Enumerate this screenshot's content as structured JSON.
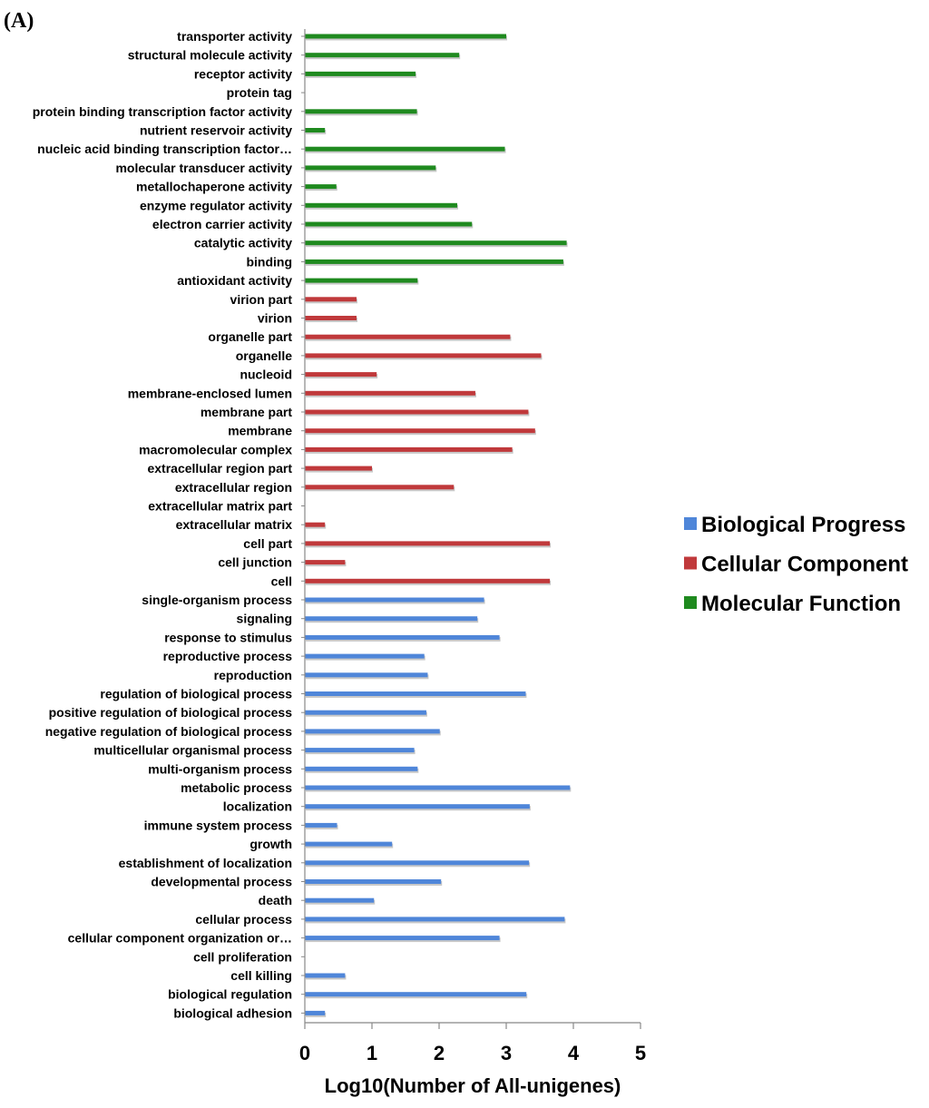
{
  "panel_label": "(A)",
  "chart_data": {
    "type": "bar",
    "orientation": "horizontal",
    "title": "",
    "xlabel": "Log10(Number of All-unigenes)",
    "ylabel": "",
    "xlim": [
      0,
      5
    ],
    "xticks": [
      0,
      1,
      2,
      3,
      4,
      5
    ],
    "grid": false,
    "legend_position": "right",
    "categories": [
      "transporter activity",
      "structural molecule activity",
      "receptor activity",
      "protein tag",
      "protein binding transcription factor activity",
      "nutrient reservoir activity",
      "nucleic acid binding transcription factor…",
      "molecular transducer activity",
      "metallochaperone activity",
      "enzyme regulator activity",
      "electron carrier activity",
      "catalytic activity",
      "binding",
      "antioxidant activity",
      "virion part",
      "virion",
      "organelle part",
      "organelle",
      "nucleoid",
      "membrane-enclosed lumen",
      "membrane part",
      "membrane",
      "macromolecular complex",
      "extracellular region part",
      "extracellular region",
      "extracellular matrix part",
      "extracellular matrix",
      "cell part",
      "cell junction",
      "cell",
      "single-organism process",
      "signaling",
      "response to stimulus",
      "reproductive process",
      "reproduction",
      "regulation of biological process",
      "positive regulation of biological process",
      "negative regulation of biological process",
      "multicellular organismal process",
      "multi-organism process",
      "metabolic process",
      "localization",
      "immune system process",
      "growth",
      "establishment of localization",
      "developmental process",
      "death",
      "cellular process",
      "cellular component organization or…",
      "cell proliferation",
      "cell killing",
      "biological regulation",
      "biological adhesion"
    ],
    "values": [
      3.0,
      2.3,
      1.65,
      0,
      1.67,
      0.3,
      2.98,
      1.95,
      0.47,
      2.27,
      2.49,
      3.9,
      3.85,
      1.68,
      0.77,
      0.77,
      3.06,
      3.52,
      1.07,
      2.54,
      3.33,
      3.43,
      3.09,
      1.0,
      2.22,
      0,
      0.3,
      3.65,
      0.6,
      3.65,
      2.67,
      2.57,
      2.9,
      1.78,
      1.83,
      3.29,
      1.81,
      2.01,
      1.63,
      1.68,
      3.95,
      3.35,
      0.48,
      1.3,
      3.34,
      2.03,
      1.03,
      3.87,
      2.9,
      0,
      0.6,
      3.3,
      0.3
    ],
    "groups": [
      "Molecular Function",
      "Molecular Function",
      "Molecular Function",
      "Molecular Function",
      "Molecular Function",
      "Molecular Function",
      "Molecular Function",
      "Molecular Function",
      "Molecular Function",
      "Molecular Function",
      "Molecular Function",
      "Molecular Function",
      "Molecular Function",
      "Molecular Function",
      "Cellular Component",
      "Cellular Component",
      "Cellular Component",
      "Cellular Component",
      "Cellular Component",
      "Cellular Component",
      "Cellular Component",
      "Cellular Component",
      "Cellular Component",
      "Cellular Component",
      "Cellular Component",
      "Cellular Component",
      "Cellular Component",
      "Cellular Component",
      "Cellular Component",
      "Cellular Component",
      "Biological Progress",
      "Biological Progress",
      "Biological Progress",
      "Biological Progress",
      "Biological Progress",
      "Biological Progress",
      "Biological Progress",
      "Biological Progress",
      "Biological Progress",
      "Biological Progress",
      "Biological Progress",
      "Biological Progress",
      "Biological Progress",
      "Biological Progress",
      "Biological Progress",
      "Biological Progress",
      "Biological Progress",
      "Biological Progress",
      "Biological Progress",
      "Biological Progress",
      "Biological Progress",
      "Biological Progress",
      "Biological Progress"
    ],
    "series": [
      {
        "name": "Biological Progress",
        "color": "#4f86d9"
      },
      {
        "name": "Cellular Component",
        "color": "#c0393b"
      },
      {
        "name": "Molecular Function",
        "color": "#1f8a1f"
      }
    ]
  }
}
